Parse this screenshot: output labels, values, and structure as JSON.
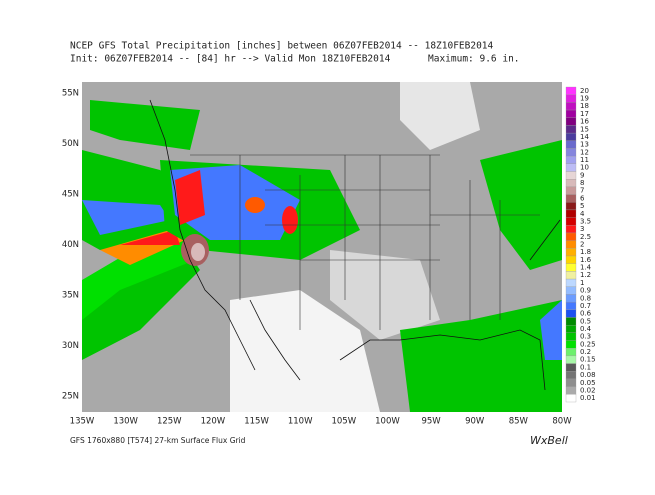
{
  "header": {
    "line1": "NCEP GFS Total Precipitation [inches] between 06Z07FEB2014 -- 18Z10FEB2014",
    "line2": "Init: 06Z07FEB2014 -- [84] hr --> Valid Mon 18Z10FEB2014",
    "maximum": "Maximum:   9.6 in."
  },
  "lat_labels": [
    "55N",
    "50N",
    "45N",
    "40N",
    "35N",
    "30N",
    "25N"
  ],
  "lon_labels": [
    "135W",
    "130W",
    "125W",
    "120W",
    "115W",
    "110W",
    "105W",
    "100W",
    "95W",
    "90W",
    "85W",
    "80W"
  ],
  "legend": {
    "labels": [
      "20",
      "19",
      "18",
      "17",
      "16",
      "15",
      "14",
      "13",
      "12",
      "11",
      "10",
      "9",
      "8",
      "7",
      "6",
      "5",
      "4",
      "3.5",
      "3",
      "2.5",
      "2",
      "1.8",
      "1.6",
      "1.4",
      "1.2",
      "1",
      "0.9",
      "0.8",
      "0.7",
      "0.6",
      "0.5",
      "0.4",
      "0.3",
      "0.25",
      "0.2",
      "0.15",
      "0.1",
      "0.08",
      "0.05",
      "0.02",
      "0.01"
    ],
    "colors": [
      "#ff33ff",
      "#e020e0",
      "#c010c0",
      "#a000a0",
      "#800080",
      "#5c2a8a",
      "#4b3c9e",
      "#6a6acc",
      "#8585dd",
      "#a0a0ee",
      "#bcbcf5",
      "#e6d6d6",
      "#d8baba",
      "#c89a9a",
      "#a86060",
      "#8a1a1a",
      "#b00000",
      "#d40000",
      "#ff1a1a",
      "#ff5a00",
      "#ff8c00",
      "#ffb000",
      "#ffd400",
      "#ffff30",
      "#f0f0a0",
      "#bcd8ff",
      "#94bcff",
      "#6c9cff",
      "#4478ff",
      "#1c50f0",
      "#008a00",
      "#00a800",
      "#00c400",
      "#00e000",
      "#6cf06c",
      "#a8f8a8",
      "#5a5a5a",
      "#747474",
      "#8e8e8e",
      "#aaaaaa",
      "#ffffff"
    ]
  },
  "footer": {
    "model": "GFS 1760x880 [T574] 27-km Surface Flux Grid",
    "brand": "WxBell"
  }
}
